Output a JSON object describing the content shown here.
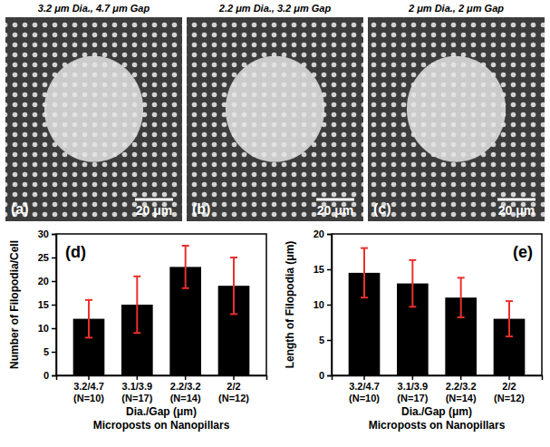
{
  "panels": [
    {
      "letter": "(a)",
      "title": "3.2 μm Dia., 4.7 μm Gap",
      "scale_bar": "20 μm"
    },
    {
      "letter": "(b)",
      "title": "2.2 μm Dia., 3.2 μm Gap",
      "scale_bar": "20 μm"
    },
    {
      "letter": "(c)",
      "title": "2 μm Dia., 2 μm Gap",
      "scale_bar": "20 μm"
    }
  ],
  "chart_data": [
    {
      "type": "bar",
      "panel_label": "(d)",
      "categories": [
        "3.2/4.7 (N=10)",
        "3.1/3.9 (N=17)",
        "2.2/3.2 (N=14)",
        "2/2 (N=12)"
      ],
      "values": [
        12,
        15,
        23,
        19
      ],
      "error": [
        4,
        6,
        4.5,
        6
      ],
      "color": "#000000",
      "y_label": "Number of Filopodia/Cell",
      "x_label": [
        "Dia./Gap (μm)",
        "Microposts on Nanopillars"
      ],
      "ylim": [
        0,
        30
      ],
      "yticks": [
        0,
        5,
        10,
        15,
        20,
        25,
        30
      ]
    },
    {
      "type": "bar",
      "panel_label": "(e)",
      "categories": [
        "3.2/4.7 (N=10)",
        "3.1/3.9 (N=17)",
        "2.2/3.2 (N=14)",
        "2/2 (N=12)"
      ],
      "values": [
        14.5,
        13,
        11,
        8
      ],
      "error": [
        3.5,
        3.3,
        2.8,
        2.5
      ],
      "color": "#000000",
      "y_label": "Length of Filopodia (μm)",
      "x_label": [
        "Dia./Gap (μm)",
        "Microposts on Nanopillars"
      ],
      "ylim": [
        0,
        20
      ],
      "yticks": [
        0,
        5,
        10,
        15,
        20
      ]
    }
  ]
}
